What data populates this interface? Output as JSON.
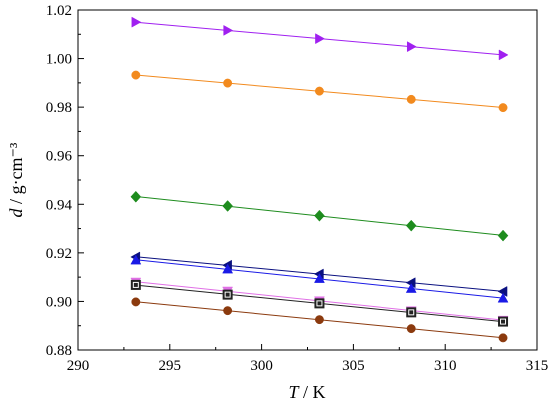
{
  "chart_data": {
    "type": "scatter",
    "xlabel": "T / K",
    "ylabel": "d / g·cm⁻³",
    "xlim": [
      290,
      315
    ],
    "ylim": [
      0.88,
      1.02
    ],
    "x_ticks": [
      290,
      295,
      300,
      305,
      310,
      315
    ],
    "x_tick_labels": [
      "290",
      "295",
      "300",
      "305",
      "310",
      "315"
    ],
    "y_ticks": [
      0.88,
      0.9,
      0.92,
      0.94,
      0.96,
      0.98,
      1.0,
      1.02
    ],
    "y_tick_labels": [
      "0.88",
      "0.90",
      "0.92",
      "0.94",
      "0.96",
      "0.98",
      "1.00",
      "1.02"
    ],
    "grid": false,
    "x": [
      293.15,
      298.15,
      303.15,
      308.15,
      313.15
    ],
    "series": [
      {
        "marker": "triangle-right",
        "color": "#a020f0",
        "values": [
          1.015,
          1.0116,
          1.0082,
          1.0049,
          1.0015
        ]
      },
      {
        "marker": "circle",
        "color": "#f28a1e",
        "values": [
          0.9932,
          0.9899,
          0.9866,
          0.9832,
          0.9798
        ]
      },
      {
        "marker": "diamond",
        "color": "#1e8c1e",
        "values": [
          0.9431,
          0.9393,
          0.9353,
          0.9312,
          0.9271
        ]
      },
      {
        "marker": "triangle-left",
        "color": "#0a1080",
        "values": [
          0.9183,
          0.9149,
          0.9113,
          0.9077,
          0.9041
        ]
      },
      {
        "marker": "triangle-up",
        "color": "#1a1ae6",
        "values": [
          0.917,
          0.9133,
          0.9094,
          0.9053,
          0.9013
        ]
      },
      {
        "marker": "triangle-down",
        "color": "#e070e6",
        "values": [
          0.908,
          0.9043,
          0.9003,
          0.8962,
          0.8923
        ]
      },
      {
        "marker": "square",
        "color": "#222222",
        "values": [
          0.9068,
          0.9028,
          0.8992,
          0.8955,
          0.8917
        ]
      },
      {
        "marker": "circle",
        "color": "#8b3a0e",
        "values": [
          0.8998,
          0.8962,
          0.8925,
          0.8888,
          0.885
        ]
      }
    ]
  }
}
